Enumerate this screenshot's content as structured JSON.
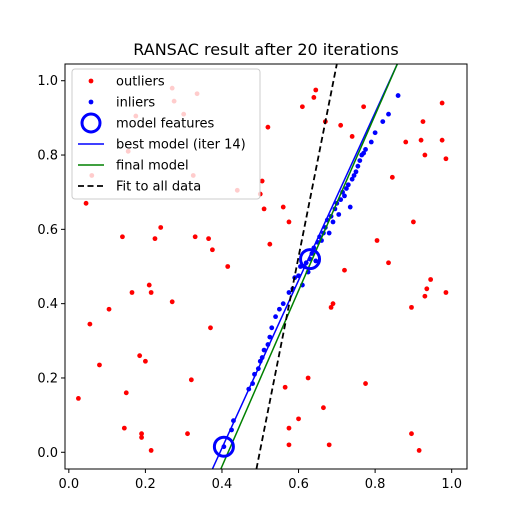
{
  "chart_data": {
    "type": "scatter",
    "title": "RANSAC result after 20 iterations",
    "xlabel": "",
    "ylabel": "",
    "xlim": [
      -0.01,
      1.04
    ],
    "ylim": [
      -0.045,
      1.045
    ],
    "xticks": [
      0.0,
      0.2,
      0.4,
      0.6,
      0.8,
      1.0
    ],
    "xtick_labels": [
      "0.0",
      "0.2",
      "0.4",
      "0.6",
      "0.8",
      "1.0"
    ],
    "yticks": [
      0.0,
      0.2,
      0.4,
      0.6,
      0.8,
      1.0
    ],
    "ytick_labels": [
      "0.0",
      "0.2",
      "0.4",
      "0.6",
      "0.8",
      "1.0"
    ],
    "grid": false,
    "legend_position": "top-left",
    "colors": {
      "outliers": "#ff0000",
      "inliers": "#0000ff",
      "model_features": "#0000ff",
      "best_model": "#0000ff",
      "final_model": "#008000",
      "fit_all": "#000000"
    },
    "legend": [
      {
        "key": "outliers",
        "label": "outliers",
        "marker": "dot",
        "color": "#ff0000"
      },
      {
        "key": "inliers",
        "label": "inliers",
        "marker": "dot",
        "color": "#0000ff"
      },
      {
        "key": "model_features",
        "label": "model features",
        "marker": "ring",
        "color": "#0000ff"
      },
      {
        "key": "best_model",
        "label": "best model (iter 14)",
        "marker": "line",
        "color": "#0000ff"
      },
      {
        "key": "final_model",
        "label": "final model",
        "marker": "line",
        "color": "#008000"
      },
      {
        "key": "fit_all",
        "label": "Fit to all data",
        "marker": "dashed",
        "color": "#000000"
      }
    ],
    "series": [
      {
        "name": "outliers",
        "kind": "points",
        "color": "#ff0000",
        "points": [
          [
            0.025,
            0.145
          ],
          [
            0.045,
            0.67
          ],
          [
            0.055,
            0.345
          ],
          [
            0.06,
            0.745
          ],
          [
            0.08,
            0.235
          ],
          [
            0.105,
            0.385
          ],
          [
            0.14,
            0.58
          ],
          [
            0.145,
            0.065
          ],
          [
            0.15,
            0.16
          ],
          [
            0.165,
            0.43
          ],
          [
            0.185,
            0.26
          ],
          [
            0.19,
            0.05
          ],
          [
            0.19,
            0.04
          ],
          [
            0.2,
            0.245
          ],
          [
            0.21,
            0.45
          ],
          [
            0.215,
            0.43
          ],
          [
            0.215,
            0.005
          ],
          [
            0.225,
            0.575
          ],
          [
            0.24,
            0.605
          ],
          [
            0.27,
            0.405
          ],
          [
            0.27,
            0.98
          ],
          [
            0.275,
            0.945
          ],
          [
            0.3,
            0.91
          ],
          [
            0.31,
            0.05
          ],
          [
            0.32,
            0.195
          ],
          [
            0.33,
            0.58
          ],
          [
            0.335,
            0.965
          ],
          [
            0.365,
            0.575
          ],
          [
            0.37,
            0.335
          ],
          [
            0.375,
            0.545
          ],
          [
            0.415,
            0.5
          ],
          [
            0.44,
            0.705
          ],
          [
            0.5,
            0.695
          ],
          [
            0.51,
            0.655
          ],
          [
            0.52,
            0.875
          ],
          [
            0.525,
            0.56
          ],
          [
            0.565,
            0.175
          ],
          [
            0.575,
            0.02
          ],
          [
            0.575,
            0.065
          ],
          [
            0.575,
            0.62
          ],
          [
            0.6,
            0.09
          ],
          [
            0.61,
            0.93
          ],
          [
            0.64,
            0.955
          ],
          [
            0.645,
            0.975
          ],
          [
            0.665,
            0.12
          ],
          [
            0.67,
            0.89
          ],
          [
            0.68,
            0.02
          ],
          [
            0.685,
            0.39
          ],
          [
            0.69,
            0.4
          ],
          [
            0.71,
            0.88
          ],
          [
            0.72,
            0.49
          ],
          [
            0.74,
            0.85
          ],
          [
            0.77,
            0.93
          ],
          [
            0.775,
            0.185
          ],
          [
            0.805,
            0.57
          ],
          [
            0.835,
            0.51
          ],
          [
            0.845,
            0.74
          ],
          [
            0.88,
            0.835
          ],
          [
            0.895,
            0.05
          ],
          [
            0.895,
            0.39
          ],
          [
            0.9,
            0.62
          ],
          [
            0.915,
            0.005
          ],
          [
            0.92,
            0.84
          ],
          [
            0.925,
            0.89
          ],
          [
            0.93,
            0.8
          ],
          [
            0.935,
            0.44
          ],
          [
            0.93,
            0.42
          ],
          [
            0.945,
            0.465
          ],
          [
            0.975,
            0.94
          ],
          [
            0.975,
            0.84
          ],
          [
            0.985,
            0.79
          ],
          [
            0.985,
            0.43
          ],
          [
            0.155,
            0.81
          ],
          [
            0.175,
            0.905
          ],
          [
            0.625,
            0.2
          ],
          [
            0.56,
            0.66
          ],
          [
            0.325,
            0.745
          ],
          [
            0.505,
            0.73
          ]
        ]
      },
      {
        "name": "inliers",
        "kind": "points",
        "color": "#0000ff",
        "points": [
          [
            0.405,
            0.015
          ],
          [
            0.425,
            0.06
          ],
          [
            0.43,
            0.085
          ],
          [
            0.47,
            0.17
          ],
          [
            0.48,
            0.185
          ],
          [
            0.485,
            0.21
          ],
          [
            0.495,
            0.225
          ],
          [
            0.5,
            0.245
          ],
          [
            0.505,
            0.255
          ],
          [
            0.51,
            0.275
          ],
          [
            0.52,
            0.29
          ],
          [
            0.525,
            0.31
          ],
          [
            0.53,
            0.335
          ],
          [
            0.54,
            0.365
          ],
          [
            0.55,
            0.385
          ],
          [
            0.56,
            0.4
          ],
          [
            0.575,
            0.43
          ],
          [
            0.585,
            0.44
          ],
          [
            0.59,
            0.47
          ],
          [
            0.6,
            0.475
          ],
          [
            0.605,
            0.5
          ],
          [
            0.615,
            0.5
          ],
          [
            0.62,
            0.51
          ],
          [
            0.63,
            0.52
          ],
          [
            0.635,
            0.535
          ],
          [
            0.64,
            0.55
          ],
          [
            0.65,
            0.565
          ],
          [
            0.655,
            0.58
          ],
          [
            0.665,
            0.59
          ],
          [
            0.67,
            0.605
          ],
          [
            0.675,
            0.625
          ],
          [
            0.685,
            0.635
          ],
          [
            0.695,
            0.655
          ],
          [
            0.7,
            0.67
          ],
          [
            0.71,
            0.68
          ],
          [
            0.715,
            0.7
          ],
          [
            0.725,
            0.71
          ],
          [
            0.73,
            0.72
          ],
          [
            0.74,
            0.735
          ],
          [
            0.745,
            0.745
          ],
          [
            0.75,
            0.755
          ],
          [
            0.755,
            0.77
          ],
          [
            0.76,
            0.785
          ],
          [
            0.765,
            0.8
          ],
          [
            0.77,
            0.805
          ],
          [
            0.775,
            0.815
          ],
          [
            0.79,
            0.835
          ],
          [
            0.8,
            0.86
          ],
          [
            0.82,
            0.89
          ],
          [
            0.835,
            0.91
          ],
          [
            0.86,
            0.96
          ],
          [
            0.61,
            0.45
          ],
          [
            0.625,
            0.485
          ],
          [
            0.645,
            0.515
          ],
          [
            0.66,
            0.57
          ],
          [
            0.68,
            0.59
          ],
          [
            0.69,
            0.62
          ],
          [
            0.705,
            0.64
          ],
          [
            0.72,
            0.69
          ],
          [
            0.735,
            0.66
          ]
        ]
      },
      {
        "name": "model features",
        "kind": "rings",
        "color": "#0000ff",
        "points": [
          [
            0.405,
            0.015
          ],
          [
            0.63,
            0.52
          ]
        ]
      },
      {
        "name": "best model (iter 14)",
        "kind": "line",
        "color": "#0000ff",
        "points": [
          [
            0.375,
            -0.045
          ],
          [
            0.858,
            1.045
          ]
        ]
      },
      {
        "name": "final model",
        "kind": "line",
        "color": "#008000",
        "points": [
          [
            0.397,
            -0.045
          ],
          [
            0.858,
            1.045
          ]
        ]
      },
      {
        "name": "Fit to all data",
        "kind": "dashed",
        "color": "#000000",
        "points": [
          [
            0.49,
            -0.045
          ],
          [
            0.7,
            1.045
          ]
        ]
      }
    ]
  }
}
